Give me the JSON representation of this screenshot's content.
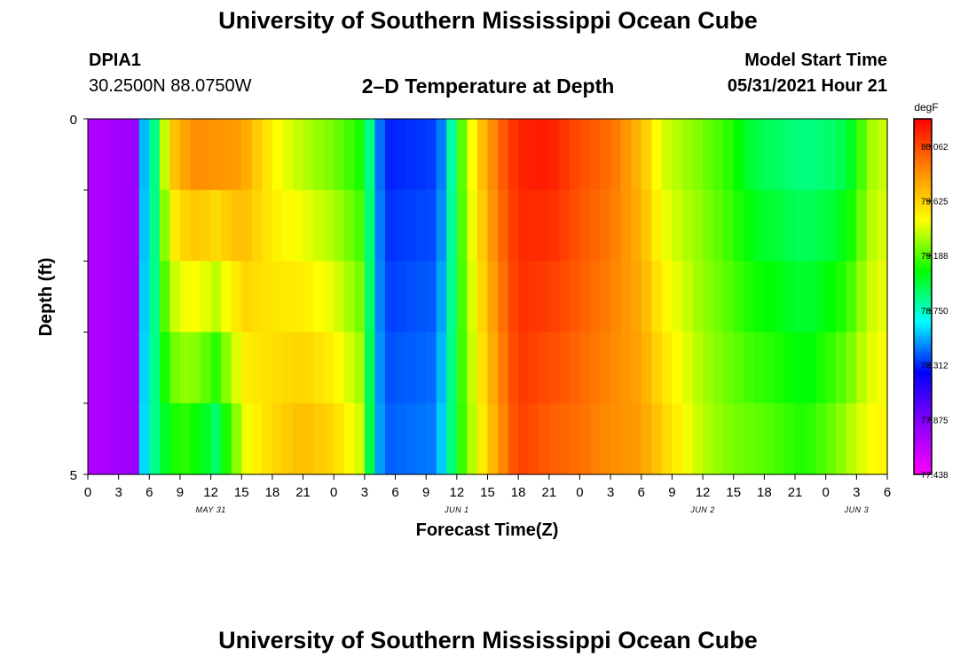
{
  "title": "University of Southern Mississippi Ocean Cube",
  "footer_title": "University of Southern Mississippi Ocean Cube",
  "station": {
    "id": "DPIA1",
    "coords": "30.2500N  88.0750W"
  },
  "model": {
    "label": "Model Start Time",
    "time": "05/31/2021 Hour 21"
  },
  "chart_data": {
    "type": "heatmap",
    "title": "2–D Temperature at Depth",
    "xlabel": "Forecast Time(Z)",
    "ylabel": "Depth (ft)",
    "x_start_hour": 0,
    "x_end_hour": 78,
    "x_tick_labels": [
      "0",
      "3",
      "6",
      "9",
      "12",
      "15",
      "18",
      "21",
      "0",
      "3",
      "6",
      "9",
      "12",
      "15",
      "18",
      "21",
      "0",
      "3",
      "6",
      "9",
      "12",
      "15",
      "18",
      "21",
      "0",
      "3",
      "6"
    ],
    "day_labels": [
      {
        "label": "MAY 31",
        "hour": 12
      },
      {
        "label": "JUN 1",
        "hour": 36
      },
      {
        "label": "JUN 2",
        "hour": 60
      },
      {
        "label": "JUN 3",
        "hour": 75
      }
    ],
    "ylim": [
      0,
      5
    ],
    "y_tick_labels": [
      {
        "label": "0",
        "value": 0
      },
      {
        "label": "5",
        "value": 5
      }
    ],
    "depth_layers": [
      0.5,
      1.5,
      2.5,
      3.5,
      4.5
    ],
    "colorbar": {
      "units": "degF",
      "min": 77.438,
      "max": 80.28,
      "tick_labels": [
        "80.062",
        "79.625",
        "79.188",
        "78.750",
        "78.312",
        "77.875",
        "77.438"
      ],
      "tick_values": [
        80.062,
        79.625,
        79.188,
        78.75,
        78.312,
        77.875,
        77.438
      ],
      "colors": [
        "#ff00ff",
        "#8a00ff",
        "#0000ff",
        "#00ffff",
        "#00ff00",
        "#ffff00",
        "#ff8800",
        "#ff0000"
      ]
    },
    "surface_series": [
      {
        "hour": 0,
        "t": 77.7
      },
      {
        "hour": 5,
        "t": 77.8
      },
      {
        "hour": 5.5,
        "t": 78.55
      },
      {
        "hour": 6.5,
        "t": 78.85
      },
      {
        "hour": 7,
        "t": 79.15
      },
      {
        "hour": 8,
        "t": 79.6
      },
      {
        "hour": 9,
        "t": 79.75
      },
      {
        "hour": 10.5,
        "t": 79.85
      },
      {
        "hour": 15,
        "t": 79.8
      },
      {
        "hour": 18,
        "t": 79.5
      },
      {
        "hour": 21,
        "t": 79.35
      },
      {
        "hour": 24,
        "t": 79.25
      },
      {
        "hour": 26.5,
        "t": 79.1
      },
      {
        "hour": 27.5,
        "t": 78.85
      },
      {
        "hour": 28,
        "t": 78.55
      },
      {
        "hour": 29,
        "t": 78.3
      },
      {
        "hour": 34,
        "t": 78.35
      },
      {
        "hour": 35,
        "t": 78.55
      },
      {
        "hour": 35.5,
        "t": 78.8
      },
      {
        "hour": 36.5,
        "t": 79.2
      },
      {
        "hour": 38,
        "t": 79.6
      },
      {
        "hour": 40,
        "t": 79.95
      },
      {
        "hour": 42,
        "t": 80.18
      },
      {
        "hour": 45,
        "t": 80.2
      },
      {
        "hour": 48,
        "t": 80.05
      },
      {
        "hour": 51,
        "t": 79.95
      },
      {
        "hour": 54,
        "t": 79.7
      },
      {
        "hour": 56,
        "t": 79.4
      },
      {
        "hour": 60,
        "t": 79.25
      },
      {
        "hour": 63,
        "t": 79.1
      },
      {
        "hour": 65,
        "t": 78.95
      },
      {
        "hour": 70,
        "t": 78.85
      },
      {
        "hour": 73,
        "t": 78.9
      },
      {
        "hour": 75,
        "t": 79.05
      },
      {
        "hour": 76,
        "t": 79.3
      },
      {
        "hour": 78,
        "t": 79.4
      }
    ],
    "bottom_series": [
      {
        "hour": 0,
        "t": 77.7
      },
      {
        "hour": 5,
        "t": 77.8
      },
      {
        "hour": 5.5,
        "t": 78.6
      },
      {
        "hour": 7,
        "t": 78.95
      },
      {
        "hour": 9,
        "t": 79.15
      },
      {
        "hour": 11,
        "t": 79.05
      },
      {
        "hour": 12.5,
        "t": 78.9
      },
      {
        "hour": 14,
        "t": 79.2
      },
      {
        "hour": 15.5,
        "t": 79.45
      },
      {
        "hour": 18,
        "t": 79.6
      },
      {
        "hour": 21,
        "t": 79.7
      },
      {
        "hour": 24,
        "t": 79.6
      },
      {
        "hour": 26.5,
        "t": 79.4
      },
      {
        "hour": 27.5,
        "t": 78.95
      },
      {
        "hour": 28,
        "t": 78.6
      },
      {
        "hour": 29,
        "t": 78.4
      },
      {
        "hour": 34,
        "t": 78.45
      },
      {
        "hour": 35,
        "t": 78.7
      },
      {
        "hour": 36,
        "t": 79.05
      },
      {
        "hour": 38,
        "t": 79.45
      },
      {
        "hour": 40,
        "t": 79.8
      },
      {
        "hour": 42,
        "t": 80.1
      },
      {
        "hour": 45,
        "t": 80.0
      },
      {
        "hour": 48,
        "t": 79.95
      },
      {
        "hour": 51,
        "t": 79.85
      },
      {
        "hour": 54,
        "t": 79.8
      },
      {
        "hour": 57,
        "t": 79.55
      },
      {
        "hour": 60,
        "t": 79.35
      },
      {
        "hour": 63,
        "t": 79.25
      },
      {
        "hour": 66,
        "t": 79.2
      },
      {
        "hour": 70,
        "t": 79.1
      },
      {
        "hour": 73,
        "t": 79.25
      },
      {
        "hour": 76,
        "t": 79.45
      },
      {
        "hour": 78,
        "t": 79.5
      }
    ]
  }
}
